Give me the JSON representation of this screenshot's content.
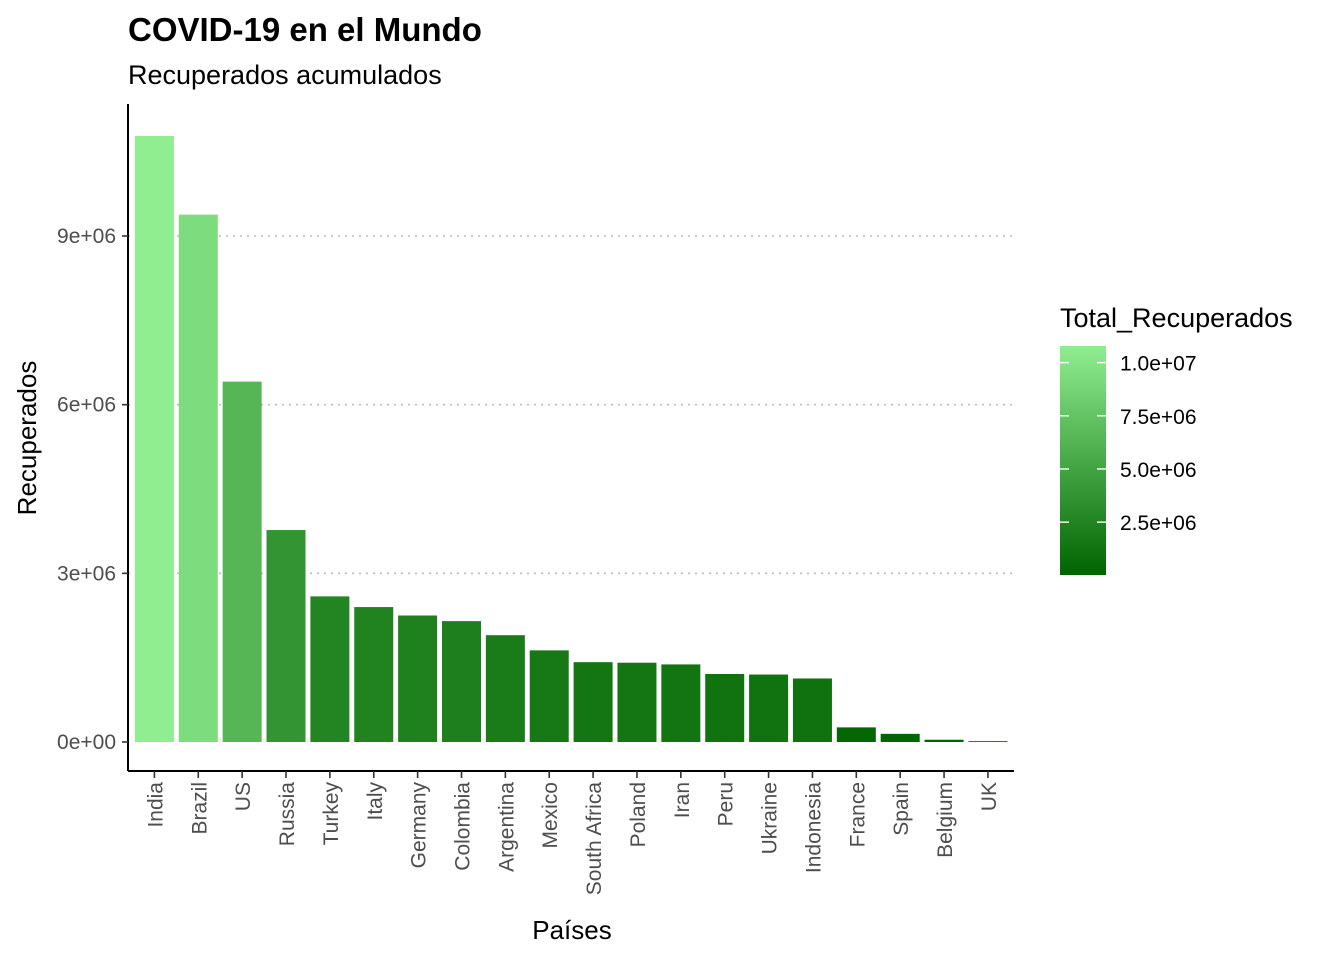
{
  "chart_data": {
    "type": "bar",
    "title": "COVID-19 en el Mundo",
    "subtitle": "Recuperados acumulados",
    "xlabel": "Países",
    "ylabel": "Recuperados",
    "categories": [
      "India",
      "Brazil",
      "US",
      "Russia",
      "Turkey",
      "Italy",
      "Germany",
      "Colombia",
      "Argentina",
      "Mexico",
      "South Africa",
      "Poland",
      "Iran",
      "Peru",
      "Ukraine",
      "Indonesia",
      "France",
      "Spain",
      "Belgium",
      "UK"
    ],
    "values": [
      10780000,
      9380000,
      6410000,
      3770000,
      2590000,
      2400000,
      2250000,
      2150000,
      1900000,
      1630000,
      1420000,
      1410000,
      1380000,
      1210000,
      1200000,
      1130000,
      260000,
      145000,
      40000,
      15000
    ],
    "ylim": [
      0,
      10800000
    ],
    "y_ticks": [
      0,
      3000000,
      6000000,
      9000000
    ],
    "y_tick_labels": [
      "0e+00",
      "3e+06",
      "6e+06",
      "9e+06"
    ],
    "grid": "horizontal dotted",
    "legend": {
      "title": "Total_Recuperados",
      "placement": "right",
      "ticks": [
        10000000,
        7500000,
        5000000,
        2500000
      ],
      "tick_labels": [
        "1.0e+07",
        "7.5e+06",
        "5.0e+06",
        "2.5e+06"
      ],
      "color_low": "#006400",
      "color_high": "#90ee90"
    }
  }
}
